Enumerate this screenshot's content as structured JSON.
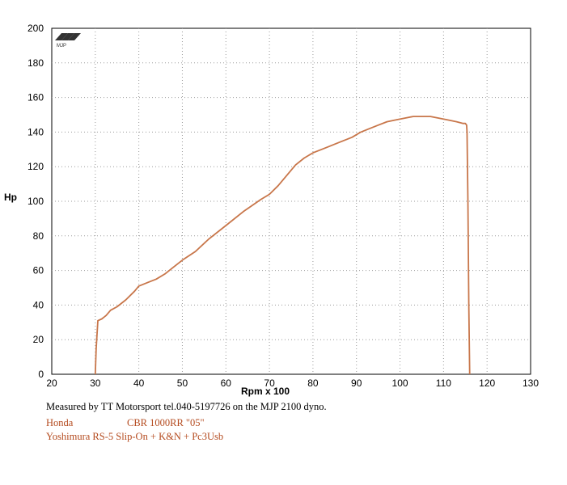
{
  "chart_data": {
    "type": "line",
    "xlabel": "Rpm x 100",
    "ylabel": "Hp",
    "xlim": [
      20,
      130
    ],
    "ylim": [
      0,
      200
    ],
    "x_ticks": [
      20,
      30,
      40,
      50,
      60,
      70,
      80,
      90,
      100,
      110,
      120,
      130
    ],
    "y_ticks": [
      0,
      20,
      40,
      60,
      80,
      100,
      120,
      140,
      160,
      180,
      200
    ],
    "grid": true,
    "series": [
      {
        "color": "#c8764a",
        "x": [
          30,
          30.2,
          30.6,
          31.5,
          32.5,
          33.5,
          35,
          37,
          39,
          40,
          42,
          44,
          46,
          48,
          50,
          53,
          56,
          60,
          64,
          68,
          70,
          72,
          74,
          76,
          78,
          80,
          83,
          86,
          89,
          91,
          93,
          95,
          97,
          99,
          101,
          103,
          105,
          107,
          109,
          111,
          113,
          114.5,
          115,
          115.3,
          115.4,
          115.6,
          115.8,
          116
        ],
        "y": [
          0,
          15,
          31,
          32,
          34,
          37,
          39,
          43,
          48,
          51,
          53,
          55,
          58,
          62,
          66,
          71,
          78,
          86,
          94,
          101,
          104,
          109,
          115,
          121,
          125,
          128,
          131,
          134,
          137,
          140,
          142,
          144,
          146,
          147,
          148,
          149,
          149,
          149,
          148,
          147,
          146,
          145,
          145,
          144,
          140,
          100,
          40,
          0
        ]
      }
    ]
  },
  "footer": {
    "note": "Measured by TT Motorsport tel.040-5197726 on the MJP 2100 dyno.",
    "make": "Honda",
    "model": "CBR 1000RR \"05\"",
    "mods": "Yoshimura RS-5 Slip-On + K&N + Pc3Usb"
  },
  "logo": {
    "text": "MJP"
  }
}
